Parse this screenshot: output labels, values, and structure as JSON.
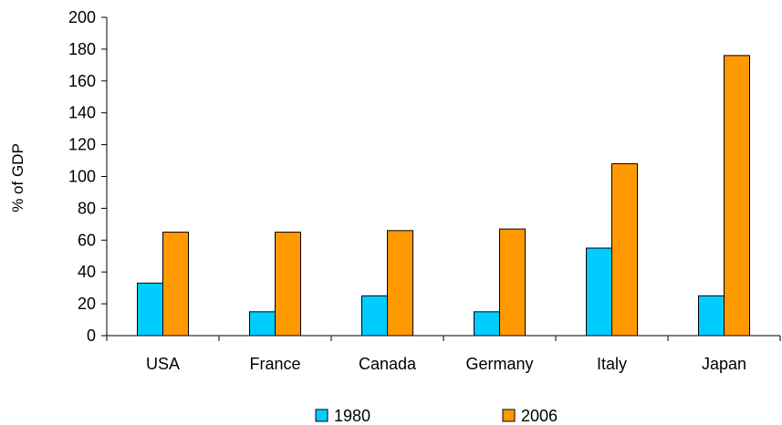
{
  "chart_data": {
    "type": "bar",
    "title": "",
    "xlabel": "",
    "ylabel": "% of GDP",
    "ylim": [
      0,
      200
    ],
    "yticks": [
      0,
      20,
      40,
      60,
      80,
      100,
      120,
      140,
      160,
      180,
      200
    ],
    "categories": [
      "USA",
      "France",
      "Canada",
      "Germany",
      "Italy",
      "Japan"
    ],
    "series": [
      {
        "name": "1980",
        "color": "#00ccff",
        "values": [
          33,
          15,
          25,
          15,
          55,
          25
        ]
      },
      {
        "name": "2006",
        "color": "#ff9900",
        "values": [
          65,
          65,
          66,
          67,
          108,
          176
        ]
      }
    ],
    "grid": false,
    "legend_position": "bottom"
  }
}
